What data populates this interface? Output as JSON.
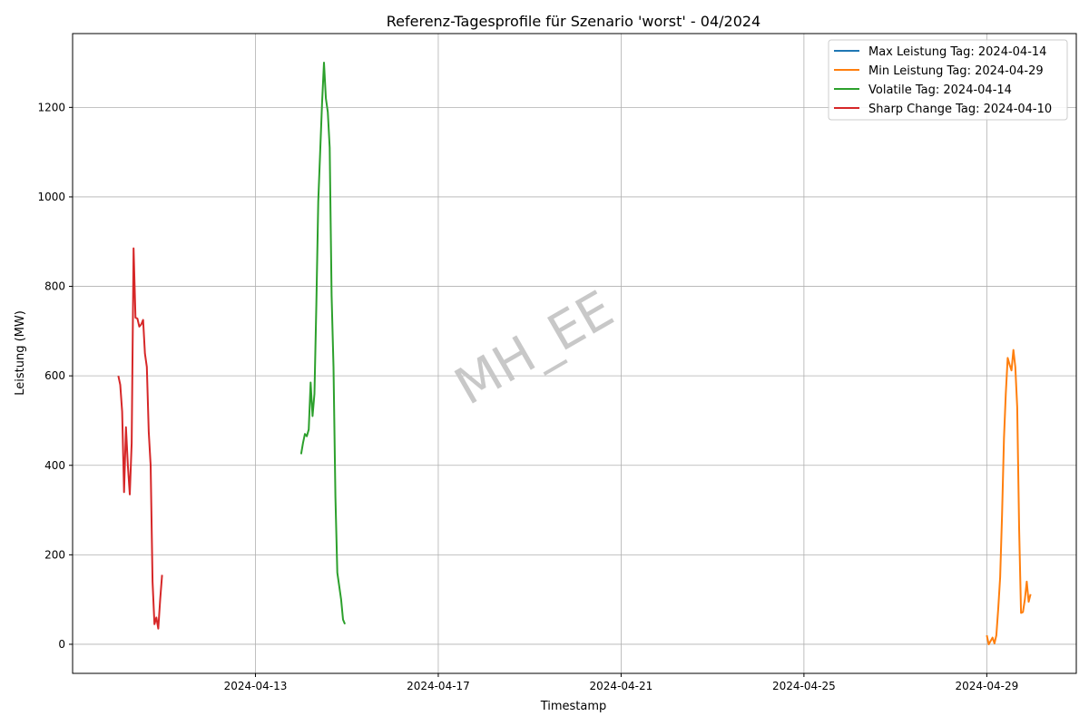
{
  "chart_data": {
    "type": "line",
    "title": "Referenz-Tagesprofile für Szenario 'worst' - 04/2024",
    "xlabel": "Timestamp",
    "ylabel": "Leistung (MW)",
    "x_axis": "date",
    "xlim": [
      "2024-04-09T00:00",
      "2024-04-30T23:00"
    ],
    "ylim": [
      -65,
      1365
    ],
    "x_ticks": [
      "2024-04-13",
      "2024-04-17",
      "2024-04-21",
      "2024-04-25",
      "2024-04-29"
    ],
    "y_ticks": [
      0,
      200,
      400,
      600,
      800,
      1000,
      1200
    ],
    "grid": true,
    "legend_position": "top-right",
    "watermark": "MH_EE",
    "series": [
      {
        "name": "Max Leistung Tag: 2024-04-14",
        "color": "#1f77b4",
        "points": []
      },
      {
        "name": "Min Leistung Tag: 2024-04-29",
        "color": "#ff7f0e",
        "points": [
          [
            "2024-04-29T00:00",
            20
          ],
          [
            "2024-04-29T01:00",
            0
          ],
          [
            "2024-04-29T03:00",
            15
          ],
          [
            "2024-04-29T04:00",
            2
          ],
          [
            "2024-04-29T05:00",
            20
          ],
          [
            "2024-04-29T06:00",
            80
          ],
          [
            "2024-04-29T07:00",
            150
          ],
          [
            "2024-04-29T08:00",
            290
          ],
          [
            "2024-04-29T09:00",
            460
          ],
          [
            "2024-04-29T10:00",
            560
          ],
          [
            "2024-04-29T11:00",
            640
          ],
          [
            "2024-04-29T12:00",
            625
          ],
          [
            "2024-04-29T13:00",
            612
          ],
          [
            "2024-04-29T14:00",
            658
          ],
          [
            "2024-04-29T15:00",
            620
          ],
          [
            "2024-04-29T16:00",
            530
          ],
          [
            "2024-04-29T17:00",
            260
          ],
          [
            "2024-04-29T18:00",
            70
          ],
          [
            "2024-04-29T19:00",
            72
          ],
          [
            "2024-04-29T20:00",
            100
          ],
          [
            "2024-04-29T21:00",
            140
          ],
          [
            "2024-04-29T22:00",
            95
          ],
          [
            "2024-04-29T23:00",
            112
          ]
        ]
      },
      {
        "name": "Volatile Tag: 2024-04-14",
        "color": "#2ca02c",
        "points": [
          [
            "2024-04-14T00:00",
            425
          ],
          [
            "2024-04-14T01:00",
            450
          ],
          [
            "2024-04-14T02:00",
            470
          ],
          [
            "2024-04-14T03:00",
            465
          ],
          [
            "2024-04-14T04:00",
            480
          ],
          [
            "2024-04-14T05:00",
            585
          ],
          [
            "2024-04-14T06:00",
            510
          ],
          [
            "2024-04-14T07:00",
            560
          ],
          [
            "2024-04-14T08:00",
            760
          ],
          [
            "2024-04-14T09:00",
            990
          ],
          [
            "2024-04-14T10:00",
            1100
          ],
          [
            "2024-04-14T11:00",
            1210
          ],
          [
            "2024-04-14T12:00",
            1300
          ],
          [
            "2024-04-14T13:00",
            1220
          ],
          [
            "2024-04-14T14:00",
            1190
          ],
          [
            "2024-04-14T15:00",
            1110
          ],
          [
            "2024-04-14T16:00",
            780
          ],
          [
            "2024-04-14T17:00",
            620
          ],
          [
            "2024-04-14T18:00",
            330
          ],
          [
            "2024-04-14T19:00",
            160
          ],
          [
            "2024-04-14T20:00",
            130
          ],
          [
            "2024-04-14T21:00",
            100
          ],
          [
            "2024-04-14T22:00",
            55
          ],
          [
            "2024-04-14T23:00",
            45
          ]
        ]
      },
      {
        "name": "Sharp Change Tag: 2024-04-10",
        "color": "#d62728",
        "points": [
          [
            "2024-04-10T00:00",
            600
          ],
          [
            "2024-04-10T01:00",
            580
          ],
          [
            "2024-04-10T02:00",
            520
          ],
          [
            "2024-04-10T03:00",
            340
          ],
          [
            "2024-04-10T04:00",
            485
          ],
          [
            "2024-04-10T05:00",
            400
          ],
          [
            "2024-04-10T06:00",
            335
          ],
          [
            "2024-04-10T07:00",
            450
          ],
          [
            "2024-04-10T08:00",
            885
          ],
          [
            "2024-04-10T09:00",
            730
          ],
          [
            "2024-04-10T10:00",
            728
          ],
          [
            "2024-04-10T11:00",
            710
          ],
          [
            "2024-04-10T12:00",
            715
          ],
          [
            "2024-04-10T13:00",
            725
          ],
          [
            "2024-04-10T14:00",
            650
          ],
          [
            "2024-04-10T15:00",
            620
          ],
          [
            "2024-04-10T16:00",
            475
          ],
          [
            "2024-04-10T17:00",
            400
          ],
          [
            "2024-04-10T18:00",
            140
          ],
          [
            "2024-04-10T19:00",
            45
          ],
          [
            "2024-04-10T20:00",
            60
          ],
          [
            "2024-04-10T21:00",
            35
          ],
          [
            "2024-04-10T22:00",
            100
          ],
          [
            "2024-04-10T23:00",
            155
          ]
        ]
      }
    ]
  }
}
